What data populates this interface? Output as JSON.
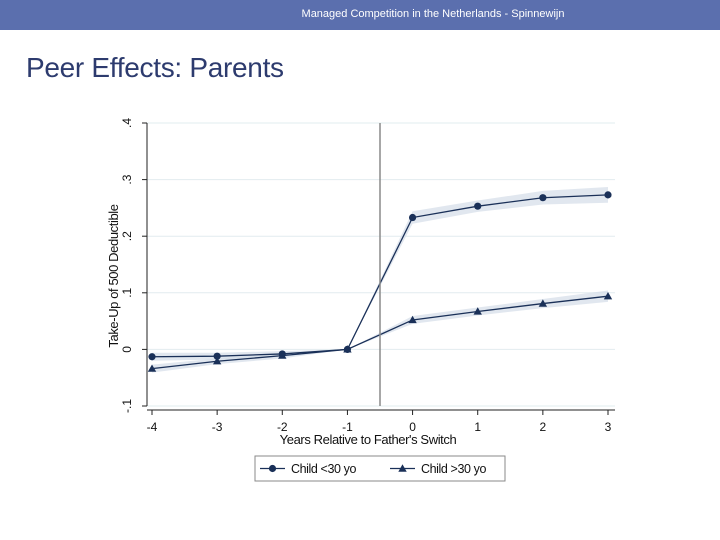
{
  "header": {
    "title": "Managed Competition in the Netherlands - Spinnewijn",
    "bar_color": "#5b6fae"
  },
  "slide": {
    "title": "Peer Effects: Parents",
    "title_color": "#2d3b6e"
  },
  "chart_data": {
    "type": "line",
    "title": "",
    "xlabel": "Years Relative to Father's Switch",
    "ylabel": "Take-Up of 500 Deductible",
    "x": [
      -4,
      -3,
      -2,
      -1,
      0,
      1,
      2,
      3
    ],
    "xlim": [
      -4,
      3
    ],
    "ylim": [
      -0.1,
      0.4
    ],
    "xticks": [
      "-4",
      "-3",
      "-2",
      "-1",
      "0",
      "1",
      "2",
      "3"
    ],
    "yticks": [
      "-.1",
      "0",
      ".1",
      ".2",
      ".3",
      ".4"
    ],
    "vline_x": -0.5,
    "grid": true,
    "legend_position": "bottom",
    "series": [
      {
        "name": "Child <30 yo",
        "marker": "circle",
        "color": "#1a3058",
        "values": [
          -0.013,
          -0.012,
          -0.008,
          0.0,
          0.233,
          0.253,
          0.268,
          0.273
        ],
        "ci_lower": [
          -0.02,
          -0.018,
          -0.013,
          0.0,
          0.222,
          0.243,
          0.256,
          0.259
        ],
        "ci_upper": [
          -0.006,
          -0.006,
          -0.003,
          0.0,
          0.244,
          0.263,
          0.28,
          0.287
        ]
      },
      {
        "name": "Child >30 yo",
        "marker": "triangle",
        "color": "#1a3058",
        "values": [
          -0.034,
          -0.021,
          -0.011,
          0.0,
          0.052,
          0.067,
          0.081,
          0.094
        ],
        "ci_lower": [
          -0.041,
          -0.026,
          -0.016,
          0.0,
          0.045,
          0.06,
          0.073,
          0.084
        ],
        "ci_upper": [
          -0.027,
          -0.016,
          -0.006,
          0.0,
          0.059,
          0.074,
          0.089,
          0.104
        ]
      }
    ]
  }
}
